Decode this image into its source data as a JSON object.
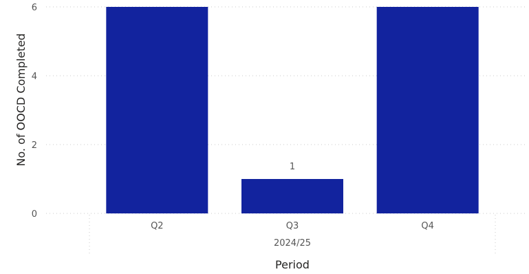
{
  "chart_data": {
    "type": "bar",
    "categories": [
      "Q2",
      "Q3",
      "Q4"
    ],
    "group_label": "2024/25",
    "values": [
      6,
      1,
      6
    ],
    "data_labels": [
      "",
      "1",
      ""
    ],
    "ylabel": "No. of OOCD Completed",
    "xlabel": "Period",
    "ylim": [
      0,
      6
    ],
    "yticks": [
      "0",
      "2",
      "4",
      "6"
    ],
    "grid": true,
    "bar_color": "#12239E"
  }
}
